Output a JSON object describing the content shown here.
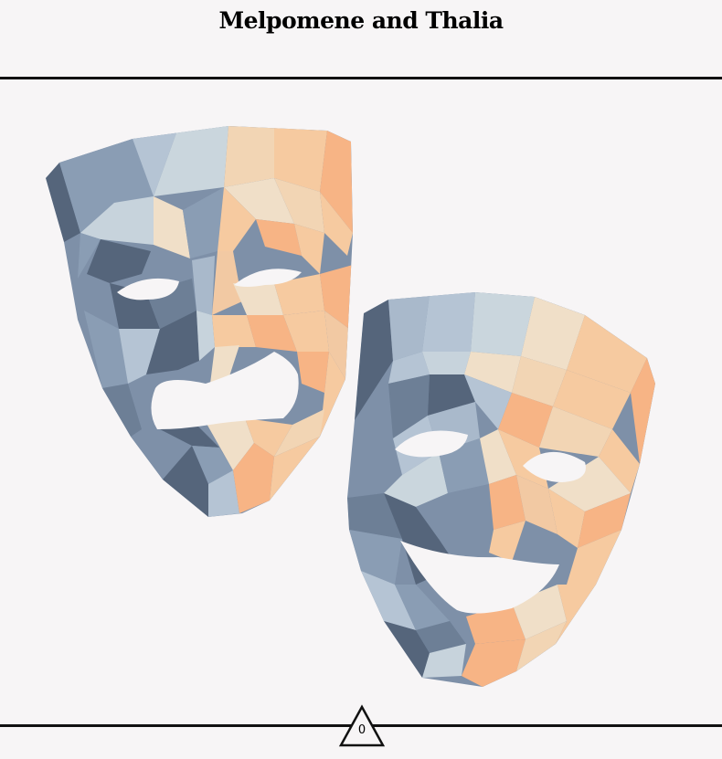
{
  "header": {
    "title": "Melpomene and Thalia"
  },
  "artwork": {
    "icon": "theatre-masks-icon",
    "palette": {
      "dark": "#55657b",
      "mid": "#7e90a8",
      "light": "#b7c5d4",
      "pale": "#cfd9de",
      "cream": "#f0dfc8",
      "peach": "#f6caa0",
      "orange": "#f7b485",
      "background": "#f7f5f6"
    }
  },
  "footer": {
    "counter": "0"
  }
}
